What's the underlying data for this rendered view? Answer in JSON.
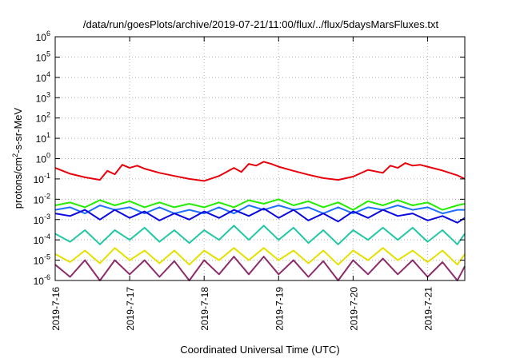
{
  "chart_data": {
    "type": "line",
    "title": "/data/run/goesPlots/archive/2019-07-21/11:00/flux/../flux/5daysMarsFluxes.txt",
    "xlabel": "Coordinated Universal Time (UTC)",
    "ylabel_main": "protons/cm",
    "ylabel_sup": "2",
    "ylabel_tail": "-s-sr-MeV",
    "y_scale": "log",
    "ylim": [
      1e-06,
      1000000.0
    ],
    "y_ticks": [
      {
        "base": "10",
        "exp": "-6"
      },
      {
        "base": "10",
        "exp": "-5"
      },
      {
        "base": "10",
        "exp": "-4"
      },
      {
        "base": "10",
        "exp": "-3"
      },
      {
        "base": "10",
        "exp": "-2"
      },
      {
        "base": "10",
        "exp": "-1"
      },
      {
        "base": "10",
        "exp": "0"
      },
      {
        "base": "10",
        "exp": "1"
      },
      {
        "base": "10",
        "exp": "2"
      },
      {
        "base": "10",
        "exp": "3"
      },
      {
        "base": "10",
        "exp": "4"
      },
      {
        "base": "10",
        "exp": "5"
      },
      {
        "base": "10",
        "exp": "6"
      }
    ],
    "x_ticks": [
      "2019-7-16",
      "2019-7-17",
      "2019-7-18",
      "2019-7-19",
      "2019-7-20",
      "2019-7-21"
    ],
    "xlim": [
      0,
      5.5
    ],
    "grid": true,
    "legend": "none",
    "series": [
      {
        "color": "#e8000b",
        "x": [
          0.0,
          0.2,
          0.4,
          0.6,
          0.7,
          0.8,
          0.9,
          1.0,
          1.1,
          1.2,
          1.4,
          1.6,
          1.8,
          2.0,
          2.2,
          2.4,
          2.5,
          2.6,
          2.7,
          2.8,
          2.9,
          3.0,
          3.2,
          3.4,
          3.6,
          3.8,
          4.0,
          4.2,
          4.4,
          4.5,
          4.6,
          4.7,
          4.8,
          4.9,
          5.0,
          5.2,
          5.4,
          5.5
        ],
        "y": [
          0.35,
          0.18,
          0.12,
          0.09,
          0.25,
          0.17,
          0.5,
          0.35,
          0.45,
          0.32,
          0.2,
          0.14,
          0.1,
          0.08,
          0.14,
          0.35,
          0.22,
          0.55,
          0.45,
          0.7,
          0.55,
          0.4,
          0.25,
          0.16,
          0.11,
          0.09,
          0.13,
          0.28,
          0.2,
          0.45,
          0.35,
          0.6,
          0.45,
          0.5,
          0.4,
          0.26,
          0.15,
          0.1
        ]
      },
      {
        "color": "#22ee00",
        "x": [
          0.0,
          0.2,
          0.4,
          0.6,
          0.8,
          1.0,
          1.2,
          1.4,
          1.6,
          1.8,
          2.0,
          2.2,
          2.4,
          2.6,
          2.8,
          3.0,
          3.2,
          3.4,
          3.6,
          3.8,
          4.0,
          4.2,
          4.4,
          4.6,
          4.8,
          5.0,
          5.2,
          5.4,
          5.5
        ],
        "y": [
          0.005,
          0.007,
          0.004,
          0.009,
          0.005,
          0.008,
          0.004,
          0.007,
          0.004,
          0.006,
          0.004,
          0.007,
          0.004,
          0.009,
          0.006,
          0.01,
          0.005,
          0.008,
          0.004,
          0.007,
          0.003,
          0.008,
          0.005,
          0.009,
          0.005,
          0.007,
          0.003,
          0.005,
          0.006
        ]
      },
      {
        "color": "#1f6fff",
        "x": [
          0.0,
          0.2,
          0.4,
          0.6,
          0.8,
          1.0,
          1.2,
          1.4,
          1.6,
          1.8,
          2.0,
          2.2,
          2.4,
          2.6,
          2.8,
          3.0,
          3.2,
          3.4,
          3.6,
          3.8,
          4.0,
          4.2,
          4.4,
          4.6,
          4.8,
          5.0,
          5.2,
          5.4,
          5.5
        ],
        "y": [
          0.003,
          0.004,
          0.002,
          0.005,
          0.003,
          0.004,
          0.002,
          0.004,
          0.002,
          0.003,
          0.002,
          0.004,
          0.002,
          0.005,
          0.003,
          0.005,
          0.003,
          0.004,
          0.002,
          0.004,
          0.002,
          0.004,
          0.003,
          0.005,
          0.003,
          0.004,
          0.002,
          0.003,
          0.003
        ]
      },
      {
        "color": "#0a08e0",
        "x": [
          0.0,
          0.2,
          0.4,
          0.6,
          0.8,
          1.0,
          1.2,
          1.4,
          1.6,
          1.8,
          2.0,
          2.2,
          2.4,
          2.6,
          2.8,
          3.0,
          3.2,
          3.4,
          3.6,
          3.8,
          4.0,
          4.2,
          4.4,
          4.6,
          4.8,
          5.0,
          5.2,
          5.4,
          5.5
        ],
        "y": [
          0.002,
          0.0015,
          0.003,
          0.001,
          0.003,
          0.0012,
          0.0025,
          0.0009,
          0.002,
          0.001,
          0.0025,
          0.0012,
          0.003,
          0.0015,
          0.0035,
          0.0012,
          0.003,
          0.0009,
          0.002,
          0.0008,
          0.0025,
          0.0012,
          0.003,
          0.0015,
          0.002,
          0.0009,
          0.0015,
          0.0007,
          0.0012
        ]
      },
      {
        "color": "#22c7a5",
        "x": [
          0.0,
          0.2,
          0.4,
          0.6,
          0.8,
          1.0,
          1.2,
          1.4,
          1.6,
          1.8,
          2.0,
          2.2,
          2.4,
          2.6,
          2.8,
          3.0,
          3.2,
          3.4,
          3.6,
          3.8,
          4.0,
          4.2,
          4.4,
          4.6,
          4.8,
          5.0,
          5.2,
          5.4,
          5.5
        ],
        "y": [
          0.0002,
          8e-05,
          0.0003,
          6e-05,
          0.0003,
          0.0001,
          0.0004,
          8e-05,
          0.0003,
          7e-05,
          0.0003,
          0.0001,
          0.0005,
          0.0001,
          0.0005,
          0.0001,
          0.0004,
          7e-05,
          0.0003,
          6e-05,
          0.0003,
          0.0001,
          0.0004,
          0.0001,
          0.0004,
          8e-05,
          0.0003,
          6e-05,
          0.0002
        ]
      },
      {
        "color": "#e6e000",
        "x": [
          0.0,
          0.2,
          0.4,
          0.6,
          0.8,
          1.0,
          1.2,
          1.4,
          1.6,
          1.8,
          2.0,
          2.2,
          2.4,
          2.6,
          2.8,
          3.0,
          3.2,
          3.4,
          3.6,
          3.8,
          4.0,
          4.2,
          4.4,
          4.6,
          4.8,
          5.0,
          5.2,
          5.4,
          5.5
        ],
        "y": [
          2e-05,
          8e-06,
          3e-05,
          7e-06,
          4e-05,
          1e-05,
          3e-05,
          7e-06,
          3e-05,
          6e-06,
          3e-05,
          1e-05,
          4e-05,
          1e-05,
          4e-05,
          1e-05,
          3e-05,
          7e-06,
          3e-05,
          6e-06,
          3e-05,
          1e-05,
          4e-05,
          1e-05,
          3e-05,
          8e-06,
          3e-05,
          6e-06,
          2e-05
        ]
      },
      {
        "color": "#8c2c6a",
        "x": [
          0.0,
          0.2,
          0.4,
          0.6,
          0.8,
          1.0,
          1.2,
          1.4,
          1.6,
          1.8,
          2.0,
          2.2,
          2.4,
          2.6,
          2.8,
          3.0,
          3.2,
          3.4,
          3.6,
          3.8,
          4.0,
          4.2,
          4.4,
          4.6,
          4.8,
          5.0,
          5.2,
          5.4,
          5.5
        ],
        "y": [
          6e-06,
          1.5e-06,
          1e-05,
          1e-06,
          1e-05,
          2e-06,
          1e-05,
          1.5e-06,
          9e-06,
          1e-06,
          1e-05,
          2e-06,
          1.5e-05,
          2e-06,
          1.5e-05,
          2e-06,
          1e-05,
          1.5e-06,
          9e-06,
          1e-06,
          1e-05,
          2e-06,
          1.2e-05,
          2e-06,
          1e-05,
          1.5e-06,
          8e-06,
          1e-06,
          5e-06
        ]
      }
    ]
  }
}
